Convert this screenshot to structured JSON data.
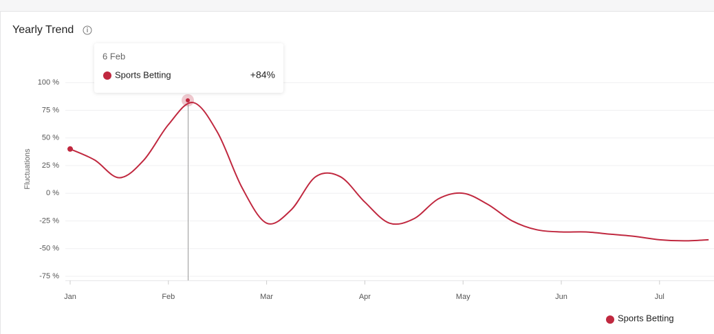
{
  "chart_data": {
    "type": "line",
    "title": "Yearly Trend",
    "y_label": "Fluctuations",
    "categories": [
      "Jan",
      null,
      null,
      null,
      "Feb",
      null,
      null,
      null,
      "Mar",
      null,
      null,
      null,
      "Apr",
      null,
      null,
      null,
      "May",
      null,
      null,
      null,
      "Jun",
      null,
      null,
      null,
      "Jul",
      null,
      null
    ],
    "series": [
      {
        "name": "Sports Betting",
        "color": "#c0283f",
        "values": [
          40,
          30,
          14,
          30,
          62,
          82,
          55,
          5,
          -27,
          -15,
          15,
          15,
          -8,
          -27,
          -23,
          -5,
          0,
          -10,
          -25,
          -33,
          -35,
          -35,
          -37,
          -39,
          -42,
          -43,
          -42
        ]
      }
    ],
    "ylim": [
      -80,
      120
    ],
    "yticks": [
      {
        "value": -75,
        "label": "-75 %"
      },
      {
        "value": -50,
        "label": "-50 %"
      },
      {
        "value": -25,
        "label": "-25 %"
      },
      {
        "value": 0,
        "label": "0 %"
      },
      {
        "value": 25,
        "label": "25 %"
      },
      {
        "value": 50,
        "label": "50 %"
      },
      {
        "value": 75,
        "label": "75 %"
      },
      {
        "value": 100,
        "label": "100 %"
      }
    ],
    "grid": true,
    "tooltip": {
      "date": "6 Feb",
      "series": "Sports Betting",
      "value": 84,
      "value_label": "+84%"
    }
  }
}
